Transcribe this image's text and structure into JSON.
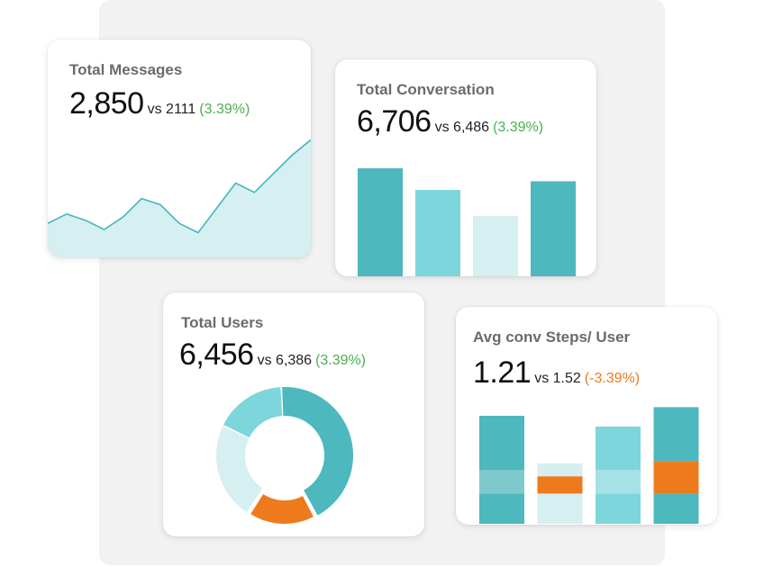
{
  "colors": {
    "teal_dark": "#4db8bd",
    "teal_mid": "#7cd6dc",
    "teal_light": "#d6eff1",
    "teal_mid2": "#7ec9cc",
    "orange": "#ee7a1e",
    "positive": "#4caf50",
    "negative": "#ee7a1e",
    "line": "#46b6bd",
    "area": "#d6eff1"
  },
  "cards": {
    "messages": {
      "title": "Total Messages",
      "value": "2,850",
      "vs": "vs 2111",
      "change": "(3.39%)"
    },
    "conversation": {
      "title": "Total Conversation",
      "value": "6,706",
      "vs": "vs 6,486",
      "change": "(3.39%)"
    },
    "users": {
      "title": "Total Users",
      "value": "6,456",
      "vs": "vs 6,386",
      "change": "(3.39%)"
    },
    "steps": {
      "title": "Avg conv Steps/ User",
      "value": "1.21",
      "vs": "vs 1.52",
      "change": "(-3.39%)"
    }
  },
  "chart_data": [
    {
      "type": "area",
      "x": [
        0,
        1,
        2,
        3,
        4,
        5,
        6,
        7,
        8,
        9,
        10,
        11,
        12,
        13,
        14
      ],
      "values": [
        22,
        28,
        24,
        18,
        26,
        38,
        34,
        22,
        16,
        32,
        48,
        42,
        54,
        66,
        76
      ],
      "ylim": [
        0,
        100
      ]
    },
    {
      "type": "bar",
      "values": [
        100,
        80,
        56,
        88
      ],
      "ylim": [
        0,
        100
      ],
      "bar_colors": [
        "#4db8bd",
        "#7cd6dc",
        "#d6eff1",
        "#4db8bd"
      ]
    },
    {
      "type": "pie",
      "donut": true,
      "values": [
        43,
        17,
        23,
        17
      ],
      "slice_colors": [
        "#4db8bd",
        "#ee7a1e",
        "#d6eff1",
        "#7cd6dc"
      ]
    },
    {
      "type": "bar",
      "stacked": true,
      "ylim": [
        0,
        100
      ],
      "stacks": [
        [
          {
            "v": 28,
            "c": "#4db8bd"
          },
          {
            "v": 22,
            "c": "#7ec9cc"
          },
          {
            "v": 50,
            "c": "#4db8bd"
          }
        ],
        [
          {
            "v": 28,
            "c": "#d6eff1"
          },
          {
            "v": 16,
            "c": "#ee7a1e"
          },
          {
            "v": 12,
            "c": "#d6eff1"
          }
        ],
        [
          {
            "v": 28,
            "c": "#7cd6dc"
          },
          {
            "v": 22,
            "c": "#a6e1e6"
          },
          {
            "v": 40,
            "c": "#7cd6dc"
          }
        ],
        [
          {
            "v": 28,
            "c": "#4db8bd"
          },
          {
            "v": 30,
            "c": "#ee7a1e"
          },
          {
            "v": 50,
            "c": "#4db8bd"
          }
        ]
      ]
    }
  ]
}
